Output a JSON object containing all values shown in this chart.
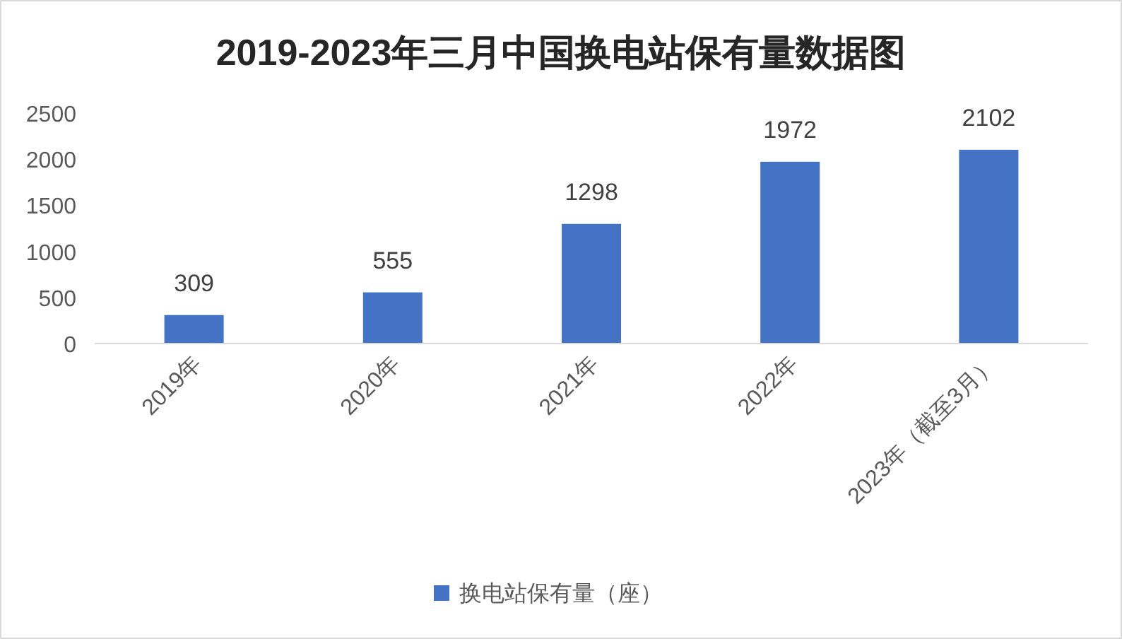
{
  "chart_data": {
    "type": "bar",
    "title": "2019-2023年三月中国换电站保有量数据图",
    "categories": [
      "2019年",
      "2020年",
      "2021年",
      "2022年",
      "2023年（截至3月）"
    ],
    "series": [
      {
        "name": "换电站保有量（座）",
        "color": "#4472c4",
        "values": [
          309,
          555,
          1298,
          1972,
          2102
        ]
      }
    ],
    "ylim": [
      0,
      2500
    ],
    "yticks": [
      0,
      500,
      1000,
      1500,
      2000,
      2500
    ],
    "data_labels": true,
    "legend": "bottom",
    "grid": false
  }
}
